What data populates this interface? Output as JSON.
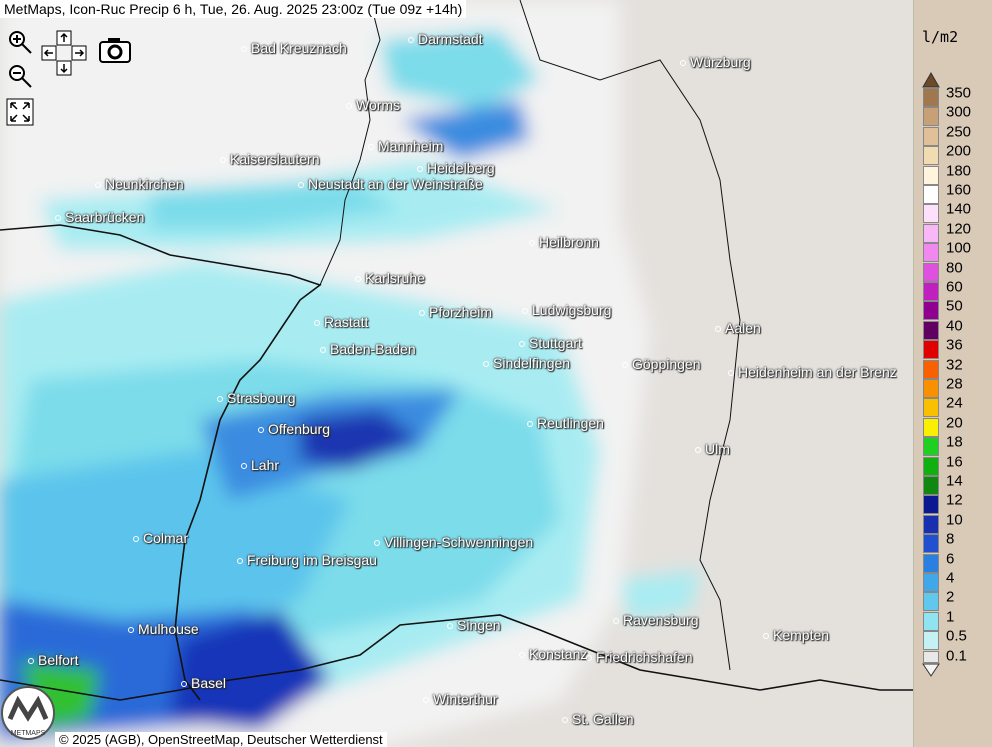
{
  "header": {
    "title": "MetMaps, Icon-Ruc Precip 6 h, Tue, 26. Aug. 2025 23:00z (Tue 09z +14h)"
  },
  "footer": {
    "copyright": "© 2025 (AGB), OpenStreetMap, Deutscher Wetterdienst",
    "logo": "METMAPS"
  },
  "legend": {
    "unit": "l/m2",
    "levels": [
      {
        "label": "350",
        "color": "#a07850"
      },
      {
        "label": "300",
        "color": "#c8a078"
      },
      {
        "label": "250",
        "color": "#e0c098"
      },
      {
        "label": "200",
        "color": "#f0dcb0"
      },
      {
        "label": "180",
        "color": "#fff4dc"
      },
      {
        "label": "160",
        "color": "#ffffff"
      },
      {
        "label": "140",
        "color": "#fce0fc"
      },
      {
        "label": "120",
        "color": "#f8b8f8"
      },
      {
        "label": "100",
        "color": "#f088f0"
      },
      {
        "label": "80",
        "color": "#e050e0"
      },
      {
        "label": "60",
        "color": "#c020c0"
      },
      {
        "label": "50",
        "color": "#900090"
      },
      {
        "label": "40",
        "color": "#600060"
      },
      {
        "label": "36",
        "color": "#e00000"
      },
      {
        "label": "32",
        "color": "#f86000"
      },
      {
        "label": "28",
        "color": "#f89000"
      },
      {
        "label": "24",
        "color": "#f8c000"
      },
      {
        "label": "20",
        "color": "#f8f000"
      },
      {
        "label": "18",
        "color": "#20d020"
      },
      {
        "label": "16",
        "color": "#10b010"
      },
      {
        "label": "14",
        "color": "#108810"
      },
      {
        "label": "12",
        "color": "#0c1890"
      },
      {
        "label": "10",
        "color": "#1830b0"
      },
      {
        "label": "8",
        "color": "#2050d0"
      },
      {
        "label": "6",
        "color": "#2a80e0"
      },
      {
        "label": "4",
        "color": "#40a8e8"
      },
      {
        "label": "2",
        "color": "#60c8ec"
      },
      {
        "label": "1",
        "color": "#90e4f0"
      },
      {
        "label": "0.5",
        "color": "#c4f2f4"
      },
      {
        "label": "0.1",
        "color": "#e8e8e8"
      }
    ]
  },
  "cities": [
    "Bad Kreuznach",
    "Darmstadt",
    "Würzburg",
    "Worms",
    "Mannheim",
    "Heidelberg",
    "Kaiserslautern",
    "Neunkirchen",
    "Neustadt an der Weinstraße",
    "Saarbrücken",
    "Heilbronn",
    "Karlsruhe",
    "Pforzheim",
    "Ludwigsburg",
    "Rastatt",
    "Aalen",
    "Stuttgart",
    "Baden-Baden",
    "Sindelfingen",
    "Göppingen",
    "Heidenheim an der Brenz",
    "Strasbourg",
    "Reutlingen",
    "Offenburg",
    "Ulm",
    "Lahr",
    "Colmar",
    "Villingen-Schwenningen",
    "Freiburg im Breisgau",
    "Ravensburg",
    "Singen",
    "Kempten",
    "Mulhouse",
    "Konstanz",
    "Friedrichshafen",
    "Belfort",
    "Basel",
    "Winterthur",
    "St. Gallen"
  ]
}
